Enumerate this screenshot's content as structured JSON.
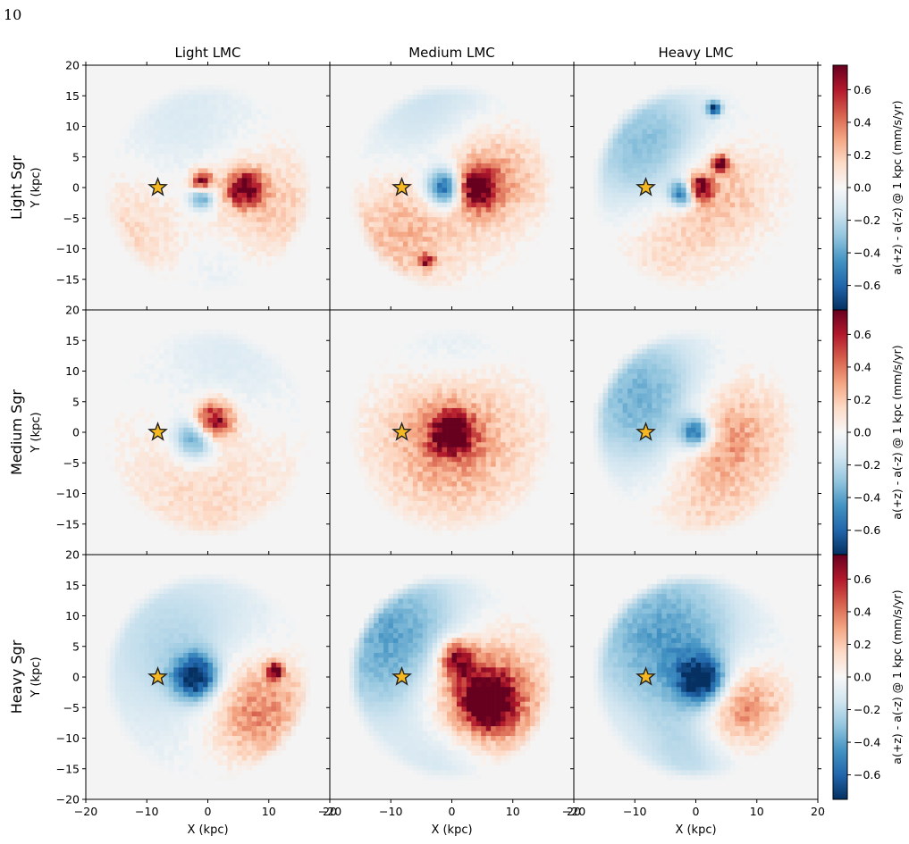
{
  "page_number": "10",
  "chart_data": {
    "type": "heatmap",
    "columns": [
      "Light LMC",
      "Medium LMC",
      "Heavy LMC"
    ],
    "rows": [
      "Light Sgr",
      "Medium Sgr",
      "Heavy Sgr"
    ],
    "xlabel": "X (kpc)",
    "ylabel": "Y (kpc)",
    "xlim": [
      -20,
      20
    ],
    "ylim": [
      -20,
      20
    ],
    "x_ticks": [
      -20,
      -10,
      0,
      10,
      20
    ],
    "y_ticks": [
      -15,
      -10,
      -5,
      0,
      5,
      10,
      15,
      20
    ],
    "bottom_y_ticks": [
      -20,
      -15,
      -10,
      -5,
      0,
      5,
      10,
      15,
      20
    ],
    "colorbar": {
      "label": "a(+z) - a(-z) @ 1 kpc (mm/s/yr)",
      "range": [
        -0.75,
        0.75
      ],
      "ticks": [
        -0.6,
        -0.4,
        -0.2,
        0.0,
        0.2,
        0.4,
        0.6
      ],
      "tick_labels": [
        "−0.6",
        "−0.4",
        "−0.2",
        "0.0",
        "0.2",
        "0.4",
        "0.6"
      ],
      "cmap": "RdBu_r",
      "colors": [
        "#053061",
        "#2166ac",
        "#4393c3",
        "#92c5de",
        "#d1e5f0",
        "#f7f7f7",
        "#fddbc7",
        "#f4a582",
        "#d6604d",
        "#b2182b",
        "#67001f"
      ]
    },
    "background_color": "#f4f4f4",
    "sun_marker": {
      "x": -8.2,
      "y": 0,
      "symbol": "star",
      "color": "#f5b820"
    },
    "disk_radius": 17,
    "panels": [
      {
        "row": 0,
        "col": 0,
        "features": [
          {
            "x": 6,
            "y": 0,
            "r": 2,
            "v": 0.75
          },
          {
            "x": -1,
            "y": 1,
            "r": 1.3,
            "v": 0.75
          },
          {
            "x": -1,
            "y": -1.5,
            "r": 1.5,
            "v": -0.5
          },
          {
            "x": 9,
            "y": -3,
            "r": 7,
            "v": 0.22
          },
          {
            "x": -12,
            "y": -7,
            "r": 7,
            "v": 0.15
          },
          {
            "x": -3,
            "y": 10,
            "r": 9,
            "v": -0.12
          },
          {
            "x": 2,
            "y": -12,
            "r": 6,
            "v": -0.1
          }
        ]
      },
      {
        "row": 0,
        "col": 1,
        "features": [
          {
            "x": -1,
            "y": 0,
            "r": 2.3,
            "v": -0.75
          },
          {
            "x": 4,
            "y": 0,
            "r": 2.2,
            "v": 0.75
          },
          {
            "x": 6,
            "y": 2,
            "r": 6,
            "v": 0.35
          },
          {
            "x": -8,
            "y": -7,
            "r": 7,
            "v": 0.25
          },
          {
            "x": -3,
            "y": 12,
            "r": 9,
            "v": -0.18
          },
          {
            "x": -4,
            "y": -12,
            "r": 0.8,
            "v": 0.6
          }
        ]
      },
      {
        "row": 0,
        "col": 2,
        "features": [
          {
            "x": 0.5,
            "y": 0,
            "r": 1.5,
            "v": 0.75
          },
          {
            "x": -2,
            "y": -1,
            "r": 1.5,
            "v": -0.7
          },
          {
            "x": 4,
            "y": 4,
            "r": 1,
            "v": 0.7
          },
          {
            "x": 3,
            "y": 0,
            "r": 6,
            "v": 0.3
          },
          {
            "x": -7,
            "y": 6,
            "r": 8,
            "v": -0.35
          },
          {
            "x": -5,
            "y": -9,
            "r": 6,
            "v": 0.15
          },
          {
            "x": 3,
            "y": 13,
            "r": 0.8,
            "v": -0.7
          }
        ]
      },
      {
        "row": 1,
        "col": 0,
        "features": [
          {
            "x": 1,
            "y": 2,
            "r": 2.2,
            "v": 0.75
          },
          {
            "x": -2,
            "y": -1,
            "r": 2.5,
            "v": -0.5
          },
          {
            "x": 0,
            "y": -8,
            "r": 10,
            "v": 0.15
          },
          {
            "x": 3,
            "y": 10,
            "r": 9,
            "v": -0.12
          }
        ]
      },
      {
        "row": 1,
        "col": 1,
        "features": [
          {
            "x": 0,
            "y": 0,
            "r": 2.3,
            "v": 0.75
          },
          {
            "x": 0,
            "y": -1,
            "r": 8,
            "v": 0.38
          },
          {
            "x": 0,
            "y": 13,
            "r": 7,
            "v": -0.12
          }
        ]
      },
      {
        "row": 1,
        "col": 2,
        "features": [
          {
            "x": 0,
            "y": 0,
            "r": 1.8,
            "v": -0.6
          },
          {
            "x": 5,
            "y": 0,
            "r": 6,
            "v": 0.35
          },
          {
            "x": -8,
            "y": 5,
            "r": 8,
            "v": -0.38
          },
          {
            "x": 2,
            "y": -11,
            "r": 6,
            "v": 0.15
          }
        ]
      },
      {
        "row": 2,
        "col": 0,
        "features": [
          {
            "x": -2,
            "y": 0,
            "r": 2.5,
            "v": -0.75
          },
          {
            "x": 8,
            "y": -5,
            "r": 6,
            "v": 0.42
          },
          {
            "x": 11,
            "y": 1,
            "r": 1,
            "v": 0.7
          },
          {
            "x": -5,
            "y": 5,
            "r": 11,
            "v": -0.22
          }
        ]
      },
      {
        "row": 2,
        "col": 1,
        "features": [
          {
            "x": 4,
            "y": -3,
            "r": 7,
            "v": 0.6
          },
          {
            "x": 6,
            "y": -4,
            "r": 3,
            "v": 0.75
          },
          {
            "x": 1,
            "y": 3,
            "r": 2,
            "v": 0.65
          },
          {
            "x": -8,
            "y": 5,
            "r": 9,
            "v": -0.45
          },
          {
            "x": 0,
            "y": -12,
            "r": 6,
            "v": -0.22
          }
        ]
      },
      {
        "row": 2,
        "col": 2,
        "features": [
          {
            "x": 1,
            "y": -0.5,
            "r": 2.8,
            "v": -0.75
          },
          {
            "x": -5,
            "y": 6,
            "r": 9,
            "v": -0.42
          },
          {
            "x": 7,
            "y": -5,
            "r": 5,
            "v": 0.45
          },
          {
            "x": 0,
            "y": -12,
            "r": 6,
            "v": -0.2
          }
        ]
      }
    ]
  }
}
